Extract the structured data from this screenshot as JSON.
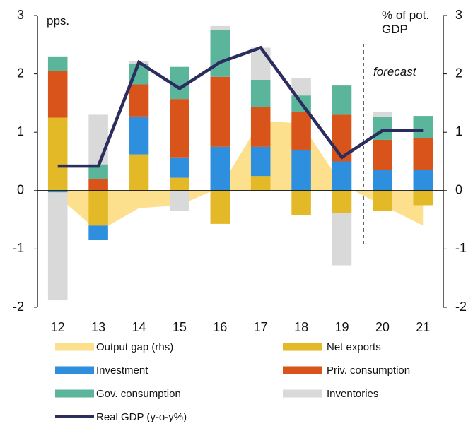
{
  "chart_data": {
    "type": "bar",
    "annotations": {
      "left_unit": "pps.",
      "right_unit": "% of pot. GDP",
      "forecast": "forecast"
    },
    "categories": [
      "12",
      "13",
      "14",
      "15",
      "16",
      "17",
      "18",
      "19",
      "20",
      "21"
    ],
    "ylim": [
      -2,
      3
    ],
    "yticks": [
      3,
      2,
      1,
      0,
      -1,
      -2
    ],
    "y2lim": [
      -2,
      3
    ],
    "y2ticks": [
      3,
      2,
      1,
      0,
      -1,
      -2
    ],
    "series": [
      {
        "name": "Output gap (rhs)",
        "type": "area",
        "axis": "y2",
        "color": "#fde08e",
        "values": [
          -0.1,
          -0.7,
          -0.3,
          -0.25,
          0.05,
          1.2,
          1.15,
          0.1,
          -0.25,
          -0.6
        ]
      },
      {
        "name": "Net exports",
        "type": "bar",
        "color": "#e3b927",
        "values": [
          1.25,
          -0.6,
          0.62,
          0.22,
          -0.57,
          0.25,
          -0.42,
          -0.38,
          -0.35,
          -0.25
        ]
      },
      {
        "name": "Investment",
        "type": "bar",
        "color": "#2f8fdf",
        "values": [
          -0.03,
          -0.25,
          0.65,
          0.35,
          0.75,
          0.5,
          0.7,
          0.5,
          0.35,
          0.35
        ]
      },
      {
        "name": "Priv. consumption",
        "type": "bar",
        "color": "#d9541b",
        "values": [
          0.8,
          0.2,
          0.55,
          1.0,
          1.2,
          0.68,
          0.65,
          0.8,
          0.52,
          0.55
        ]
      },
      {
        "name": "Gov. consumption",
        "type": "bar",
        "color": "#5bb59b",
        "values": [
          0.25,
          0.25,
          0.35,
          0.55,
          0.8,
          0.47,
          0.28,
          0.5,
          0.4,
          0.38
        ]
      },
      {
        "name": "Inventories",
        "type": "bar",
        "color": "#d9d9d9",
        "values": [
          -1.85,
          0.85,
          0.05,
          -0.35,
          0.07,
          0.55,
          0.3,
          -0.9,
          0.08,
          0
        ]
      },
      {
        "name": "Real GDP (y-o-y%)",
        "type": "line",
        "axis": "y2",
        "color": "#2b2d5e",
        "values": [
          0.42,
          0.42,
          2.2,
          1.75,
          2.2,
          2.45,
          1.5,
          0.57,
          1.03,
          1.03
        ]
      }
    ]
  }
}
